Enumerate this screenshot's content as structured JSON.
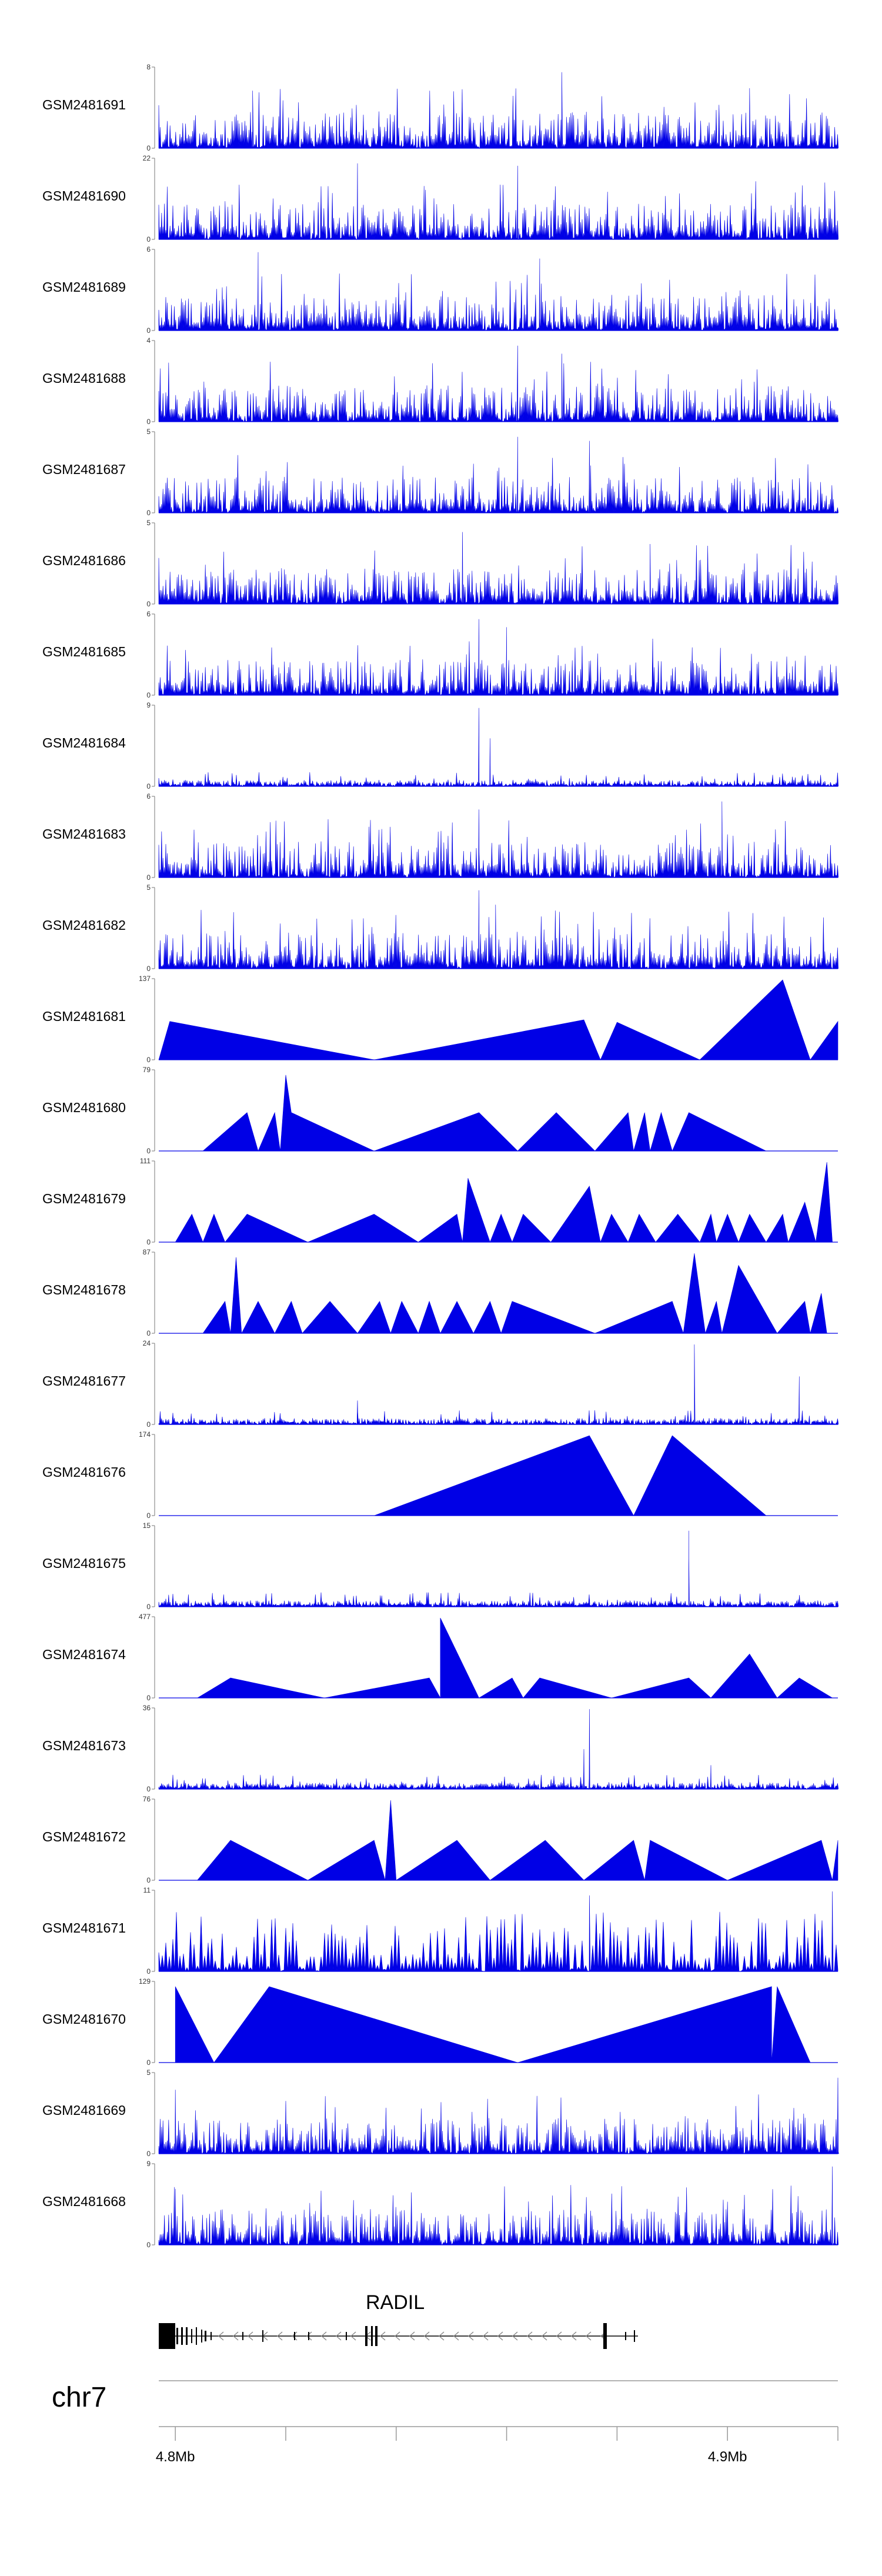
{
  "chart_data": {
    "type": "area",
    "chromosome": "chr7",
    "gene": {
      "name": "RADIL",
      "strand": "-"
    },
    "x_axis": {
      "ticks": [
        4.8,
        4.82,
        4.84,
        4.86,
        4.88,
        4.9,
        4.92
      ],
      "tick_labels": [
        {
          "value": 4.8,
          "label": "4.8Mb"
        },
        {
          "value": 4.9,
          "label": "4.9Mb"
        }
      ]
    },
    "tracks": [
      {
        "name": "GSM2481691",
        "ymax": "8",
        "ymin": "0",
        "style": "dense",
        "peaks": [
          [
            4.814,
            0.72
          ],
          [
            4.87,
            0.95
          ],
          [
            4.904,
            0.75
          ]
        ]
      },
      {
        "name": "GSM2481690",
        "ymax": "22",
        "ymin": "0",
        "style": "sparse",
        "segments": 26,
        "peaks": [
          [
            4.833,
            0.95
          ],
          [
            4.862,
            0.92
          ]
        ]
      },
      {
        "name": "GSM2481689",
        "ymax": "6",
        "ymin": "0",
        "style": "dense",
        "peaks": [
          [
            4.815,
            0.98
          ],
          [
            4.866,
            0.9
          ]
        ]
      },
      {
        "name": "GSM2481688",
        "ymax": "4",
        "ymin": "0",
        "style": "dense",
        "peaks": [
          [
            4.862,
            0.95
          ],
          [
            4.87,
            0.85
          ]
        ]
      },
      {
        "name": "GSM2481687",
        "ymax": "5",
        "ymin": "0",
        "style": "dense",
        "peaks": [
          [
            4.862,
            0.95
          ],
          [
            4.875,
            0.9
          ]
        ]
      },
      {
        "name": "GSM2481686",
        "ymax": "5",
        "ymin": "0",
        "style": "dense",
        "peaks": [
          [
            4.852,
            0.9
          ],
          [
            4.886,
            0.75
          ]
        ]
      },
      {
        "name": "GSM2481685",
        "ymax": "6",
        "ymin": "0",
        "style": "dense",
        "peaks": [
          [
            4.855,
            0.95
          ],
          [
            4.86,
            0.85
          ]
        ]
      },
      {
        "name": "GSM2481684",
        "ymax": "9",
        "ymin": "0",
        "style": "low",
        "peaks": [
          [
            4.855,
            0.98
          ],
          [
            4.857,
            0.6
          ]
        ]
      },
      {
        "name": "GSM2481683",
        "ymax": "6",
        "ymin": "0",
        "style": "dense",
        "peaks": [
          [
            4.855,
            0.85
          ],
          [
            4.899,
            0.95
          ]
        ]
      },
      {
        "name": "GSM2481682",
        "ymax": "5",
        "ymin": "0",
        "style": "dense",
        "peaks": [
          [
            4.855,
            0.98
          ],
          [
            4.858,
            0.8
          ]
        ]
      },
      {
        "name": "GSM2481681",
        "ymax": "137",
        "ymin": "0",
        "style": "sparse",
        "points": [
          [
            4.797,
            0
          ],
          [
            4.799,
            0.48
          ],
          [
            4.836,
            0
          ],
          [
            4.874,
            0.5
          ],
          [
            4.877,
            0
          ],
          [
            4.88,
            0.47
          ],
          [
            4.895,
            0
          ],
          [
            4.91,
            1.0
          ],
          [
            4.915,
            0
          ],
          [
            4.92,
            0.48
          ],
          [
            4.92,
            0
          ]
        ]
      },
      {
        "name": "GSM2481680",
        "ymax": "79",
        "ymin": "0",
        "style": "sparse",
        "points": [
          [
            4.805,
            0
          ],
          [
            4.813,
            0.48
          ],
          [
            4.815,
            0
          ],
          [
            4.818,
            0.48
          ],
          [
            4.819,
            0
          ],
          [
            4.82,
            0.95
          ],
          [
            4.821,
            0.48
          ],
          [
            4.836,
            0
          ],
          [
            4.855,
            0.48
          ],
          [
            4.862,
            0
          ],
          [
            4.869,
            0.48
          ],
          [
            4.876,
            0
          ],
          [
            4.882,
            0.48
          ],
          [
            4.883,
            0
          ],
          [
            4.885,
            0.48
          ],
          [
            4.886,
            0
          ],
          [
            4.888,
            0.48
          ],
          [
            4.89,
            0
          ],
          [
            4.893,
            0.48
          ],
          [
            4.907,
            0
          ]
        ]
      },
      {
        "name": "GSM2481679",
        "ymax": "111",
        "ymin": "0",
        "style": "sparse",
        "points": [
          [
            4.8,
            0
          ],
          [
            4.803,
            0.35
          ],
          [
            4.805,
            0
          ],
          [
            4.807,
            0.35
          ],
          [
            4.809,
            0
          ],
          [
            4.813,
            0.35
          ],
          [
            4.824,
            0
          ],
          [
            4.836,
            0.35
          ],
          [
            4.844,
            0
          ],
          [
            4.851,
            0.35
          ],
          [
            4.852,
            0
          ],
          [
            4.853,
            0.8
          ],
          [
            4.857,
            0
          ],
          [
            4.859,
            0.35
          ],
          [
            4.861,
            0
          ],
          [
            4.863,
            0.35
          ],
          [
            4.868,
            0
          ],
          [
            4.875,
            0.7
          ],
          [
            4.877,
            0
          ],
          [
            4.879,
            0.35
          ],
          [
            4.882,
            0
          ],
          [
            4.884,
            0.35
          ],
          [
            4.887,
            0
          ],
          [
            4.891,
            0.35
          ],
          [
            4.895,
            0
          ],
          [
            4.897,
            0.35
          ],
          [
            4.898,
            0
          ],
          [
            4.9,
            0.35
          ],
          [
            4.902,
            0
          ],
          [
            4.904,
            0.35
          ],
          [
            4.907,
            0
          ],
          [
            4.91,
            0.35
          ],
          [
            4.911,
            0
          ],
          [
            4.914,
            0.5
          ],
          [
            4.916,
            0
          ],
          [
            4.918,
            1.0
          ],
          [
            4.919,
            0
          ]
        ]
      },
      {
        "name": "GSM2481678",
        "ymax": "87",
        "ymin": "0",
        "style": "sparse",
        "points": [
          [
            4.805,
            0
          ],
          [
            4.809,
            0.4
          ],
          [
            4.81,
            0
          ],
          [
            4.811,
            0.95
          ],
          [
            4.812,
            0
          ],
          [
            4.815,
            0.4
          ],
          [
            4.818,
            0
          ],
          [
            4.821,
            0.4
          ],
          [
            4.823,
            0
          ],
          [
            4.828,
            0.4
          ],
          [
            4.833,
            0
          ],
          [
            4.837,
            0.4
          ],
          [
            4.839,
            0
          ],
          [
            4.841,
            0.4
          ],
          [
            4.844,
            0
          ],
          [
            4.846,
            0.4
          ],
          [
            4.848,
            0
          ],
          [
            4.851,
            0.4
          ],
          [
            4.854,
            0
          ],
          [
            4.857,
            0.4
          ],
          [
            4.859,
            0
          ],
          [
            4.861,
            0.4
          ],
          [
            4.876,
            0
          ],
          [
            4.89,
            0.4
          ],
          [
            4.892,
            0
          ],
          [
            4.894,
            1.0
          ],
          [
            4.896,
            0
          ],
          [
            4.898,
            0.4
          ],
          [
            4.899,
            0
          ],
          [
            4.902,
            0.85
          ],
          [
            4.909,
            0
          ],
          [
            4.914,
            0.4
          ],
          [
            4.915,
            0
          ],
          [
            4.917,
            0.5
          ],
          [
            4.918,
            0
          ]
        ]
      },
      {
        "name": "GSM2481677",
        "ymax": "24",
        "ymin": "0",
        "style": "low",
        "peaks": [
          [
            4.894,
            1.0
          ],
          [
            4.913,
            0.6
          ],
          [
            4.833,
            0.3
          ]
        ]
      },
      {
        "name": "GSM2481676",
        "ymax": "174",
        "ymin": "0",
        "style": "sparse",
        "points": [
          [
            4.836,
            0
          ],
          [
            4.875,
            1.0
          ],
          [
            4.883,
            0
          ],
          [
            4.89,
            1.0
          ],
          [
            4.907,
            0
          ]
        ]
      },
      {
        "name": "GSM2481675",
        "ymax": "15",
        "ymin": "0",
        "style": "low",
        "peaks": [
          [
            4.893,
            0.95
          ],
          [
            4.893,
            0.6
          ]
        ]
      },
      {
        "name": "GSM2481674",
        "ymax": "477",
        "ymin": "0",
        "style": "sparse",
        "points": [
          [
            4.804,
            0
          ],
          [
            4.81,
            0.25
          ],
          [
            4.827,
            0
          ],
          [
            4.846,
            0.25
          ],
          [
            4.848,
            0
          ],
          [
            4.848,
            1.0
          ],
          [
            4.855,
            0
          ],
          [
            4.861,
            0.25
          ],
          [
            4.863,
            0
          ],
          [
            4.866,
            0.25
          ],
          [
            4.879,
            0
          ],
          [
            4.893,
            0.25
          ],
          [
            4.897,
            0
          ],
          [
            4.904,
            0.55
          ],
          [
            4.909,
            0
          ],
          [
            4.913,
            0.25
          ],
          [
            4.919,
            0
          ]
        ]
      },
      {
        "name": "GSM2481673",
        "ymax": "36",
        "ymin": "0",
        "style": "low",
        "peaks": [
          [
            4.875,
            1.0
          ],
          [
            4.874,
            0.5
          ],
          [
            4.897,
            0.3
          ]
        ]
      },
      {
        "name": "GSM2481672",
        "ymax": "76",
        "ymin": "0",
        "style": "sparse",
        "points": [
          [
            4.804,
            0
          ],
          [
            4.81,
            0.5
          ],
          [
            4.824,
            0
          ],
          [
            4.836,
            0.5
          ],
          [
            4.838,
            0
          ],
          [
            4.839,
            1.0
          ],
          [
            4.84,
            0
          ],
          [
            4.851,
            0.5
          ],
          [
            4.857,
            0
          ],
          [
            4.867,
            0.5
          ],
          [
            4.874,
            0
          ],
          [
            4.883,
            0.5
          ],
          [
            4.885,
            0
          ],
          [
            4.886,
            0.5
          ],
          [
            4.9,
            0
          ],
          [
            4.917,
            0.5
          ],
          [
            4.919,
            0
          ],
          [
            4.92,
            0.5
          ],
          [
            4.92,
            0
          ]
        ]
      },
      {
        "name": "GSM2481671",
        "ymax": "11",
        "ymin": "0",
        "style": "sparse-dense",
        "peaks": [
          [
            4.875,
            0.95
          ],
          [
            4.919,
            1.0
          ]
        ]
      },
      {
        "name": "GSM2481670",
        "ymax": "129",
        "ymin": "0",
        "style": "sparse",
        "points": [
          [
            4.8,
            0.95
          ],
          [
            4.807,
            0
          ],
          [
            4.817,
            0.95
          ],
          [
            4.862,
            0
          ],
          [
            4.908,
            0.95
          ],
          [
            4.908,
            0
          ],
          [
            4.909,
            0.95
          ],
          [
            4.915,
            0
          ]
        ]
      },
      {
        "name": "GSM2481669",
        "ymax": "5",
        "ymin": "0",
        "style": "dense",
        "peaks": [
          [
            4.8,
            0.8
          ],
          [
            4.92,
            0.95
          ]
        ]
      },
      {
        "name": "GSM2481668",
        "ymax": "9",
        "ymin": "0",
        "style": "dense",
        "peaks": [
          [
            4.919,
            0.98
          ],
          [
            4.8,
            0.7
          ]
        ]
      }
    ]
  }
}
